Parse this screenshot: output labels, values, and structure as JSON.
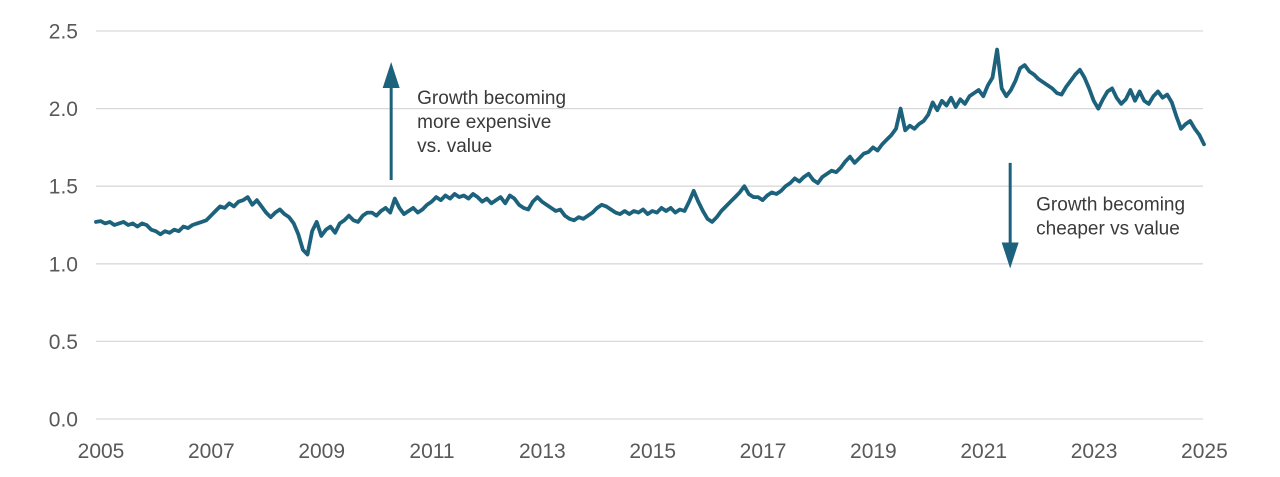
{
  "chart_data": {
    "type": "line",
    "title": "",
    "xlabel": "",
    "ylabel": "",
    "ylim": [
      0,
      2.5
    ],
    "xlim": [
      2005.0,
      2025.0833
    ],
    "grid": "horizontal",
    "legend": "none",
    "y_ticks": [
      "0.0",
      "0.5",
      "1.0",
      "1.5",
      "2.0",
      "2.5"
    ],
    "x_ticks": [
      "2005",
      "2007",
      "2009",
      "2011",
      "2013",
      "2015",
      "2017",
      "2019",
      "2021",
      "2023",
      "2025"
    ],
    "series": [
      {
        "name": "growth-vs-value-ratio",
        "start_year": 2005,
        "points_per_year": 12,
        "values": [
          1.27,
          1.275,
          1.26,
          1.27,
          1.25,
          1.26,
          1.27,
          1.25,
          1.26,
          1.24,
          1.26,
          1.25,
          1.22,
          1.21,
          1.19,
          1.21,
          1.2,
          1.22,
          1.21,
          1.24,
          1.23,
          1.25,
          1.26,
          1.27,
          1.28,
          1.31,
          1.34,
          1.37,
          1.36,
          1.39,
          1.37,
          1.4,
          1.41,
          1.43,
          1.38,
          1.41,
          1.37,
          1.33,
          1.3,
          1.33,
          1.35,
          1.32,
          1.3,
          1.26,
          1.19,
          1.09,
          1.06,
          1.21,
          1.27,
          1.18,
          1.22,
          1.24,
          1.2,
          1.26,
          1.28,
          1.31,
          1.28,
          1.27,
          1.31,
          1.33,
          1.33,
          1.31,
          1.34,
          1.36,
          1.33,
          1.42,
          1.36,
          1.32,
          1.34,
          1.36,
          1.33,
          1.35,
          1.38,
          1.4,
          1.43,
          1.41,
          1.44,
          1.42,
          1.45,
          1.43,
          1.44,
          1.42,
          1.45,
          1.43,
          1.4,
          1.42,
          1.39,
          1.41,
          1.43,
          1.39,
          1.44,
          1.42,
          1.38,
          1.36,
          1.35,
          1.4,
          1.43,
          1.4,
          1.38,
          1.36,
          1.34,
          1.35,
          1.31,
          1.29,
          1.28,
          1.3,
          1.29,
          1.31,
          1.33,
          1.36,
          1.38,
          1.37,
          1.35,
          1.33,
          1.32,
          1.34,
          1.32,
          1.34,
          1.33,
          1.35,
          1.32,
          1.34,
          1.33,
          1.36,
          1.34,
          1.36,
          1.33,
          1.35,
          1.34,
          1.4,
          1.47,
          1.4,
          1.34,
          1.29,
          1.27,
          1.3,
          1.34,
          1.37,
          1.4,
          1.43,
          1.46,
          1.5,
          1.45,
          1.43,
          1.43,
          1.41,
          1.44,
          1.46,
          1.45,
          1.47,
          1.5,
          1.52,
          1.55,
          1.53,
          1.56,
          1.58,
          1.54,
          1.52,
          1.56,
          1.58,
          1.6,
          1.59,
          1.62,
          1.66,
          1.69,
          1.65,
          1.68,
          1.71,
          1.72,
          1.75,
          1.73,
          1.77,
          1.8,
          1.83,
          1.87,
          2.0,
          1.86,
          1.89,
          1.87,
          1.9,
          1.92,
          1.96,
          2.04,
          1.99,
          2.05,
          2.02,
          2.07,
          2.01,
          2.06,
          2.03,
          2.08,
          2.1,
          2.12,
          2.08,
          2.15,
          2.2,
          2.38,
          2.13,
          2.08,
          2.12,
          2.18,
          2.26,
          2.28,
          2.24,
          2.22,
          2.19,
          2.17,
          2.15,
          2.13,
          2.1,
          2.09,
          2.14,
          2.18,
          2.22,
          2.25,
          2.2,
          2.13,
          2.05,
          2.0,
          2.06,
          2.11,
          2.13,
          2.07,
          2.03,
          2.06,
          2.12,
          2.05,
          2.11,
          2.05,
          2.03,
          2.08,
          2.11,
          2.07,
          2.09,
          2.04,
          1.95,
          1.87,
          1.9,
          1.92,
          1.87,
          1.83,
          1.77
        ]
      }
    ],
    "annotations": [
      {
        "id": "growth-more-expensive",
        "direction": "up",
        "x_year": 2010.35,
        "value_from": 1.54,
        "value_to": 2.3,
        "lines": [
          "Growth becoming",
          "more expensive",
          "vs. value"
        ]
      },
      {
        "id": "growth-cheaper",
        "direction": "down",
        "x_year": 2021.57,
        "value_from": 1.65,
        "value_to": 0.97,
        "lines": [
          "Growth becoming",
          "cheaper vs value"
        ]
      }
    ],
    "colors": {
      "line": "#1d627c",
      "arrow": "#1d627c",
      "grid": "#d9d9d9",
      "axis_text": "#595959",
      "annotation_text": "#3a3a3a",
      "background": "#ffffff"
    }
  }
}
